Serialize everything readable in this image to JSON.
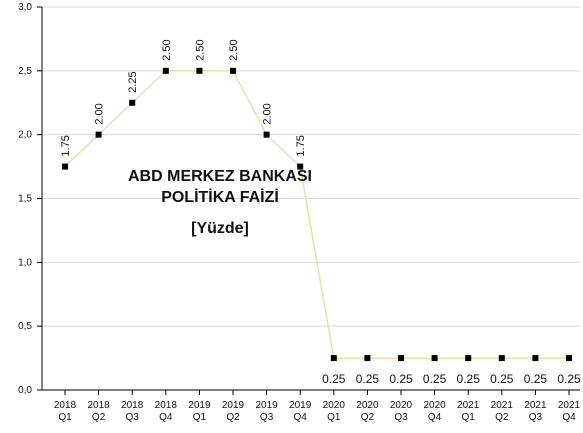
{
  "chart_data": {
    "type": "line",
    "title": "ABD MERKEZ BANKASI POLİTİKA FAİZİ",
    "subtitle": "[Yüzde]",
    "categories": [
      "2018 Q1",
      "2018 Q2",
      "2018 Q3",
      "2018 Q4",
      "2019 Q1",
      "2019 Q2",
      "2019 Q3",
      "2019 Q4",
      "2020 Q1",
      "2020 Q2",
      "2020 Q3",
      "2020 Q4",
      "2021 Q1",
      "2021 Q2",
      "2021 Q3",
      "2021 Q4"
    ],
    "values": [
      1.75,
      2.0,
      2.25,
      2.5,
      2.5,
      2.5,
      2.0,
      1.75,
      0.25,
      0.25,
      0.25,
      0.25,
      0.25,
      0.25,
      0.25,
      0.25
    ],
    "value_labels": [
      "1.75",
      "2.00",
      "2.25",
      "2.50",
      "2.50",
      "2.50",
      "2.00",
      "1.75",
      "0.25",
      "0.25",
      "0.25",
      "0.25",
      "0.25",
      "0.25",
      "0.25",
      "0.25"
    ],
    "color": "#e9e0a6",
    "marker_color": "#000000",
    "ylim": [
      0,
      3
    ],
    "yticks": [
      {
        "value": 0,
        "label": "0,0"
      },
      {
        "value": 0.5,
        "label": "0,5"
      },
      {
        "value": 1,
        "label": "1,0"
      },
      {
        "value": 1.5,
        "label": "1,5"
      },
      {
        "value": 2,
        "label": "2,0"
      },
      {
        "value": 2.5,
        "label": "2,5"
      },
      {
        "value": 3,
        "label": "3,0"
      }
    ],
    "grid": true
  }
}
